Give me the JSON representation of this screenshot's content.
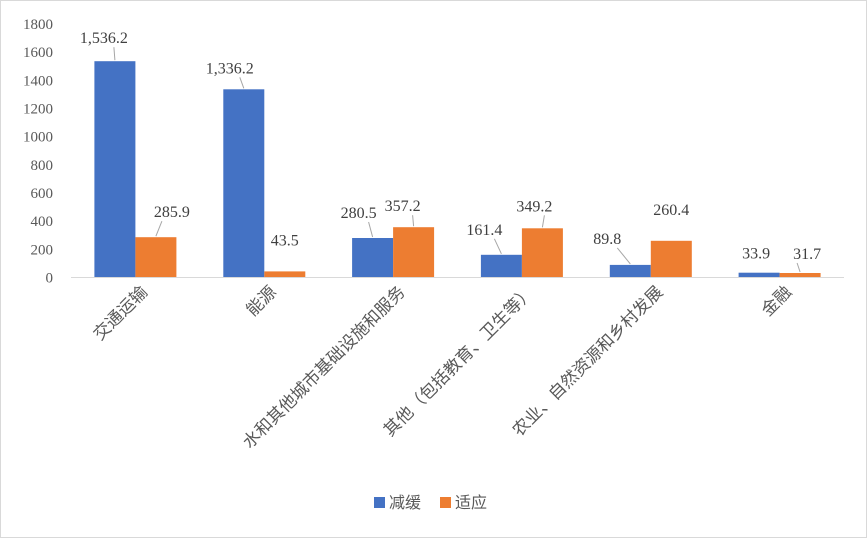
{
  "chart_data": {
    "type": "bar",
    "title": "",
    "xlabel": "",
    "ylabel": "",
    "ylim": [
      0,
      1800
    ],
    "yticks": [
      0,
      200,
      400,
      600,
      800,
      1000,
      1200,
      1400,
      1600,
      1800
    ],
    "grid": false,
    "legend_position": "bottom",
    "categories": [
      "交通运输",
      "能源",
      "水和其他城市基础设施和服务",
      "其他（包括教育、卫生等）",
      "农业、自然资源和乡村发展",
      "金融"
    ],
    "series": [
      {
        "name": "减缓",
        "color": "#4472C4",
        "values": [
          1536.2,
          1336.2,
          280.5,
          161.4,
          89.8,
          33.9
        ],
        "labels": [
          "1,536.2",
          "1,336.2",
          "280.5",
          "161.4",
          "89.8",
          "33.9"
        ]
      },
      {
        "name": "适应",
        "color": "#ED7D31",
        "values": [
          285.9,
          43.5,
          357.2,
          349.2,
          260.4,
          31.7
        ],
        "labels": [
          "285.9",
          "43.5",
          "357.2",
          "349.2",
          "260.4",
          "31.7"
        ]
      }
    ]
  }
}
